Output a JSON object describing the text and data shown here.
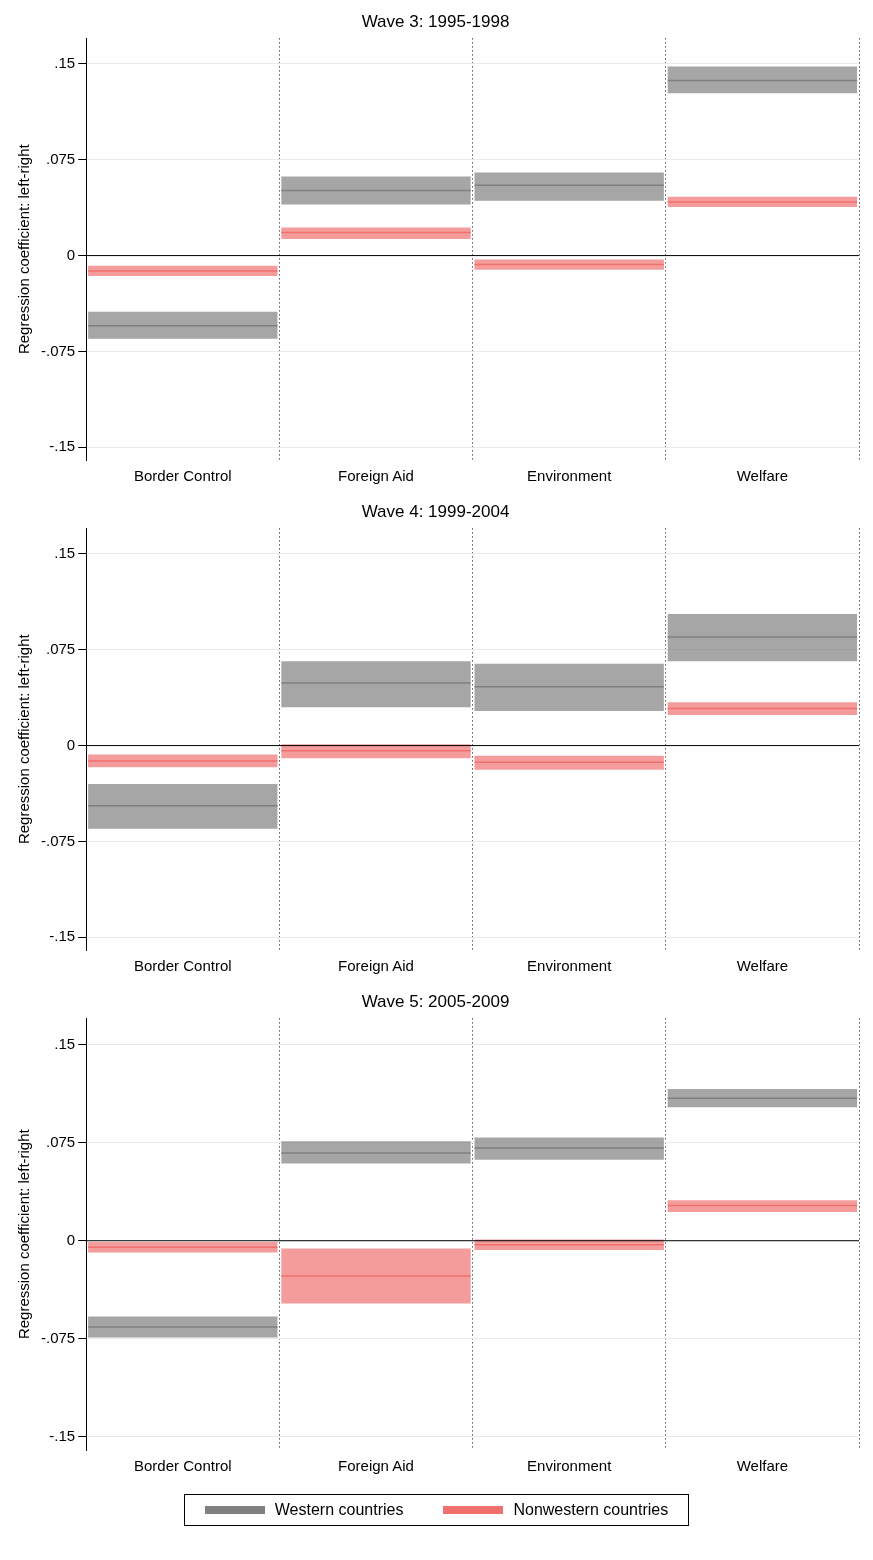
{
  "chart_data": [
    {
      "type": "box",
      "title": "Wave 3: 1995-1998",
      "ylabel": "Regression coefficient: left-right",
      "categories": [
        "Border Control",
        "Foreign Aid",
        "Environment",
        "Welfare"
      ],
      "ylim": [
        -0.16,
        0.17
      ],
      "yticks": [
        {
          "value": 0.15,
          "label": ".15"
        },
        {
          "value": 0.075,
          "label": ".075"
        },
        {
          "value": 0,
          "label": "0"
        },
        {
          "value": -0.075,
          "label": "-.075"
        },
        {
          "value": -0.15,
          "label": "-.15"
        }
      ],
      "grid": true,
      "ref_lines": [
        {
          "axis": "y",
          "value": 0,
          "color": "#000000"
        }
      ],
      "series": [
        {
          "color": "#808080",
          "boxes": [
            {
              "low": -0.065,
              "q1": -0.065,
              "median": -0.055,
              "q3": -0.044,
              "high": -0.044
            },
            {
              "low": 0.04,
              "q1": 0.04,
              "median": 0.051,
              "q3": 0.062,
              "high": 0.062
            },
            {
              "low": 0.043,
              "q1": 0.043,
              "median": 0.055,
              "q3": 0.065,
              "high": 0.065
            },
            {
              "low": 0.127,
              "q1": 0.127,
              "median": 0.137,
              "q3": 0.148,
              "high": 0.148
            }
          ]
        },
        {
          "color": "#f07070",
          "boxes": [
            {
              "low": -0.016,
              "q1": -0.016,
              "median": -0.012,
              "q3": -0.008,
              "high": -0.008
            },
            {
              "low": 0.013,
              "q1": 0.013,
              "median": 0.018,
              "q3": 0.022,
              "high": 0.022
            },
            {
              "low": -0.011,
              "q1": -0.011,
              "median": -0.007,
              "q3": -0.003,
              "high": -0.003
            },
            {
              "low": 0.038,
              "q1": 0.038,
              "median": 0.042,
              "q3": 0.046,
              "high": 0.046
            }
          ]
        }
      ]
    },
    {
      "type": "box",
      "title": "Wave 4: 1999-2004",
      "ylabel": "Regression coefficient: left-right",
      "categories": [
        "Border Control",
        "Foreign Aid",
        "Environment",
        "Welfare"
      ],
      "ylim": [
        -0.16,
        0.17
      ],
      "yticks": [
        {
          "value": 0.15,
          "label": ".15"
        },
        {
          "value": 0.075,
          "label": ".075"
        },
        {
          "value": 0,
          "label": "0"
        },
        {
          "value": -0.075,
          "label": "-.075"
        },
        {
          "value": -0.15,
          "label": "-.15"
        }
      ],
      "grid": true,
      "ref_lines": [
        {
          "axis": "y",
          "value": 0,
          "color": "#000000"
        }
      ],
      "series": [
        {
          "color": "#808080",
          "boxes": [
            {
              "low": -0.065,
              "q1": -0.065,
              "median": -0.047,
              "q3": -0.03,
              "high": -0.03
            },
            {
              "low": 0.03,
              "q1": 0.03,
              "median": 0.049,
              "q3": 0.066,
              "high": 0.066
            },
            {
              "low": 0.027,
              "q1": 0.027,
              "median": 0.046,
              "q3": 0.064,
              "high": 0.064
            },
            {
              "low": 0.066,
              "q1": 0.066,
              "median": 0.085,
              "q3": 0.103,
              "high": 0.103
            }
          ]
        },
        {
          "color": "#f07070",
          "boxes": [
            {
              "low": -0.017,
              "q1": -0.017,
              "median": -0.012,
              "q3": -0.007,
              "high": -0.007
            },
            {
              "low": -0.01,
              "q1": -0.01,
              "median": -0.004,
              "q3": 0.001,
              "high": 0.001
            },
            {
              "low": -0.019,
              "q1": -0.019,
              "median": -0.013,
              "q3": -0.008,
              "high": -0.008
            },
            {
              "low": 0.024,
              "q1": 0.024,
              "median": 0.029,
              "q3": 0.034,
              "high": 0.034
            }
          ]
        }
      ]
    },
    {
      "type": "box",
      "title": "Wave 5: 2005-2009",
      "ylabel": "Regression coefficient: left-right",
      "categories": [
        "Border Control",
        "Foreign Aid",
        "Environment",
        "Welfare"
      ],
      "ylim": [
        -0.16,
        0.17
      ],
      "yticks": [
        {
          "value": 0.15,
          "label": ".15"
        },
        {
          "value": 0.075,
          "label": ".075"
        },
        {
          "value": 0,
          "label": "0"
        },
        {
          "value": -0.075,
          "label": "-.075"
        },
        {
          "value": -0.15,
          "label": "-.15"
        }
      ],
      "grid": true,
      "legend": "bottom",
      "ref_lines": [
        {
          "axis": "y",
          "value": 0,
          "color": "#000000"
        }
      ],
      "series": [
        {
          "name": "Western countries",
          "color": "#808080",
          "boxes": [
            {
              "low": -0.074,
              "q1": -0.074,
              "median": -0.066,
              "q3": -0.058,
              "high": -0.058
            },
            {
              "low": 0.059,
              "q1": 0.059,
              "median": 0.067,
              "q3": 0.076,
              "high": 0.076
            },
            {
              "low": 0.062,
              "q1": 0.062,
              "median": 0.071,
              "q3": 0.079,
              "high": 0.079
            },
            {
              "low": 0.102,
              "q1": 0.102,
              "median": 0.109,
              "q3": 0.116,
              "high": 0.116
            }
          ]
        },
        {
          "name": "Nonwestern countries",
          "color": "#f07070",
          "boxes": [
            {
              "low": -0.009,
              "q1": -0.009,
              "median": -0.005,
              "q3": -0.001,
              "high": -0.001
            },
            {
              "low": -0.048,
              "q1": -0.048,
              "median": -0.027,
              "q3": -0.006,
              "high": -0.006
            },
            {
              "low": -0.007,
              "q1": -0.007,
              "median": -0.003,
              "q3": 0.001,
              "high": 0.001
            },
            {
              "low": 0.022,
              "q1": 0.022,
              "median": 0.027,
              "q3": 0.031,
              "high": 0.031
            }
          ]
        }
      ]
    }
  ]
}
